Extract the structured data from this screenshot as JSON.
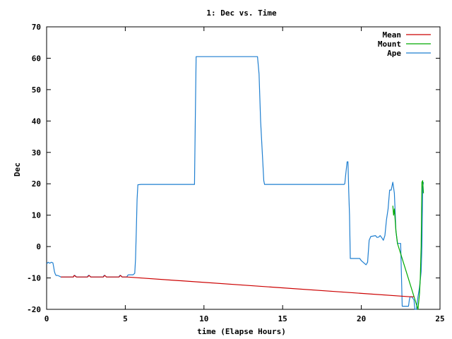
{
  "chart_data": {
    "type": "line",
    "title": "1: Dec vs. Time",
    "xlabel": "time (Elapse Hours)",
    "ylabel": "Dec",
    "xlim": [
      0,
      25
    ],
    "ylim": [
      -20,
      70
    ],
    "xticks": [
      0,
      5,
      10,
      15,
      20,
      25
    ],
    "yticks": [
      -20,
      -10,
      0,
      10,
      20,
      30,
      40,
      50,
      60,
      70
    ],
    "grid": false,
    "legend_position": "top-right",
    "series": [
      {
        "name": "Mean",
        "color": "#cc0000",
        "x": [
          0.9,
          1.7,
          1.75,
          1.9,
          2.6,
          2.7,
          2.8,
          3.6,
          3.7,
          3.8,
          4.6,
          4.7,
          4.8,
          5.1,
          23.1,
          23.3,
          23.35
        ],
        "y": [
          -9.7,
          -9.7,
          -9.2,
          -9.7,
          -9.7,
          -9.2,
          -9.7,
          -9.7,
          -9.2,
          -9.7,
          -9.7,
          -9.2,
          -9.7,
          -9.7,
          -16.0,
          -16.0,
          -16.0
        ]
      },
      {
        "name": "Mount",
        "color": "#00aa00",
        "x": [
          22.0,
          22.05,
          22.1,
          22.2,
          22.3,
          23.6,
          23.7,
          23.75,
          23.8,
          23.85,
          23.9,
          23.95
        ],
        "y": [
          13.0,
          10.0,
          12.0,
          5.0,
          1.0,
          -20.0,
          -15.0,
          -10.0,
          0.0,
          20.5,
          21.0,
          17.0
        ]
      },
      {
        "name": "Ape",
        "color": "#1f7fd0",
        "x": [
          0.0,
          0.1,
          0.2,
          0.3,
          0.4,
          0.45,
          0.5,
          0.55,
          0.6,
          0.7,
          0.8,
          0.9,
          1.7,
          1.75,
          1.8,
          1.9,
          2.6,
          2.65,
          2.7,
          2.8,
          3.6,
          3.65,
          3.7,
          3.8,
          4.6,
          4.65,
          4.7,
          4.8,
          5.1,
          5.15,
          5.2,
          5.5,
          5.6,
          5.65,
          5.7,
          5.75,
          5.8,
          6.0,
          9.4,
          9.45,
          9.5,
          9.6,
          13.4,
          13.5,
          13.6,
          13.8,
          13.85,
          18.9,
          18.95,
          19.0,
          19.1,
          19.15,
          19.2,
          19.25,
          19.3,
          19.9,
          20.0,
          20.3,
          20.4,
          20.5,
          20.6,
          20.9,
          21.0,
          21.1,
          21.2,
          21.3,
          21.4,
          21.5,
          21.6,
          21.7,
          21.8,
          21.9,
          22.0,
          22.1,
          22.2,
          22.3,
          22.5,
          22.6,
          23.0,
          23.05,
          23.1,
          23.2,
          23.35,
          23.4,
          23.5,
          23.6,
          23.7,
          23.8,
          23.85,
          23.9,
          23.95
        ],
        "y": [
          -5.5,
          -5.0,
          -5.3,
          -5.0,
          -5.2,
          -6.5,
          -8.0,
          -8.8,
          -9.2,
          -9.2,
          -9.4,
          -9.7,
          -9.7,
          -9.2,
          -9.2,
          -9.7,
          -9.7,
          -9.2,
          -9.2,
          -9.7,
          -9.7,
          -9.2,
          -9.2,
          -9.7,
          -9.7,
          -9.2,
          -9.2,
          -9.7,
          -9.7,
          -9.2,
          -9.0,
          -9.0,
          -8.5,
          -4.0,
          5.0,
          15.0,
          19.7,
          19.8,
          19.8,
          40.0,
          60.5,
          60.5,
          60.5,
          55.0,
          40.0,
          21.0,
          19.8,
          19.8,
          20.0,
          22.5,
          27.0,
          27.0,
          17.5,
          10.0,
          -3.8,
          -3.8,
          -4.5,
          -5.8,
          -5.0,
          2.0,
          3.2,
          3.5,
          2.9,
          3.0,
          3.5,
          2.8,
          2.0,
          3.5,
          8.5,
          12.0,
          18.0,
          18.0,
          20.5,
          17.0,
          5.0,
          1.0,
          1.0,
          -19.0,
          -19.0,
          -17.0,
          -16.0,
          -16.0,
          -17.0,
          -20.0,
          -20.0,
          -16.0,
          -13.0,
          -8.0,
          0.0,
          19.0,
          20.5
        ]
      }
    ]
  }
}
